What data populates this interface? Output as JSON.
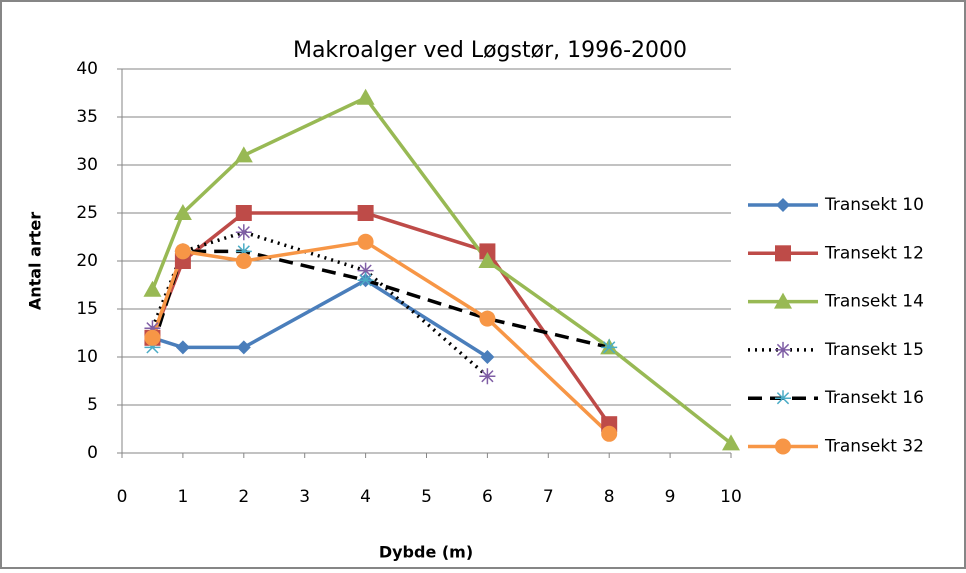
{
  "chart_data": {
    "type": "line",
    "title": "Makroalger ved Løgstør, 1996-2000",
    "xlabel": "Dybde (m)",
    "ylabel": "Antal arter",
    "xlim": [
      0,
      10
    ],
    "xticks": [
      0,
      1,
      2,
      3,
      4,
      5,
      6,
      7,
      8,
      9,
      10
    ],
    "ylim": [
      0,
      40
    ],
    "yticks": [
      0,
      5,
      10,
      15,
      20,
      25,
      30,
      35,
      40
    ],
    "grid": true,
    "legend": "right",
    "series": [
      {
        "name": "Transekt 10",
        "color": "#4a7ebb",
        "marker": "diamond",
        "marker_color": "#4a7ebb",
        "line": "solid",
        "x": [
          0.5,
          1,
          2,
          4,
          6
        ],
        "values": [
          12,
          11,
          11,
          18,
          10
        ]
      },
      {
        "name": "Transekt 12",
        "color": "#be4b48",
        "marker": "square",
        "marker_color": "#be4b48",
        "line": "solid",
        "x": [
          0.5,
          1,
          2,
          4,
          6,
          8
        ],
        "values": [
          12,
          20,
          25,
          25,
          21,
          3
        ]
      },
      {
        "name": "Transekt 14",
        "color": "#98b954",
        "marker": "triangle",
        "marker_color": "#98b954",
        "line": "solid",
        "x": [
          0.5,
          1,
          2,
          4,
          6,
          8,
          10
        ],
        "values": [
          17,
          25,
          31,
          37,
          20,
          11,
          1
        ]
      },
      {
        "name": "Transekt 15",
        "color": "#000000",
        "marker": "star",
        "marker_color": "#7f5ea5",
        "line": "dotted",
        "x": [
          0.5,
          1,
          2,
          4,
          6
        ],
        "values": [
          13,
          21,
          23,
          19,
          8
        ]
      },
      {
        "name": "Transekt 16",
        "color": "#000000",
        "marker": "asterisk",
        "marker_color": "#4bacc6",
        "line": "dashed",
        "x": [
          0.5,
          1,
          2,
          4,
          6,
          8
        ],
        "values": [
          11,
          21,
          21,
          18,
          14,
          11
        ]
      },
      {
        "name": "Transekt 32",
        "color": "#f79646",
        "marker": "circle",
        "marker_color": "#f79646",
        "line": "solid",
        "x": [
          0.5,
          1,
          2,
          4,
          6,
          8
        ],
        "values": [
          12,
          21,
          20,
          22,
          14,
          2
        ]
      }
    ]
  }
}
